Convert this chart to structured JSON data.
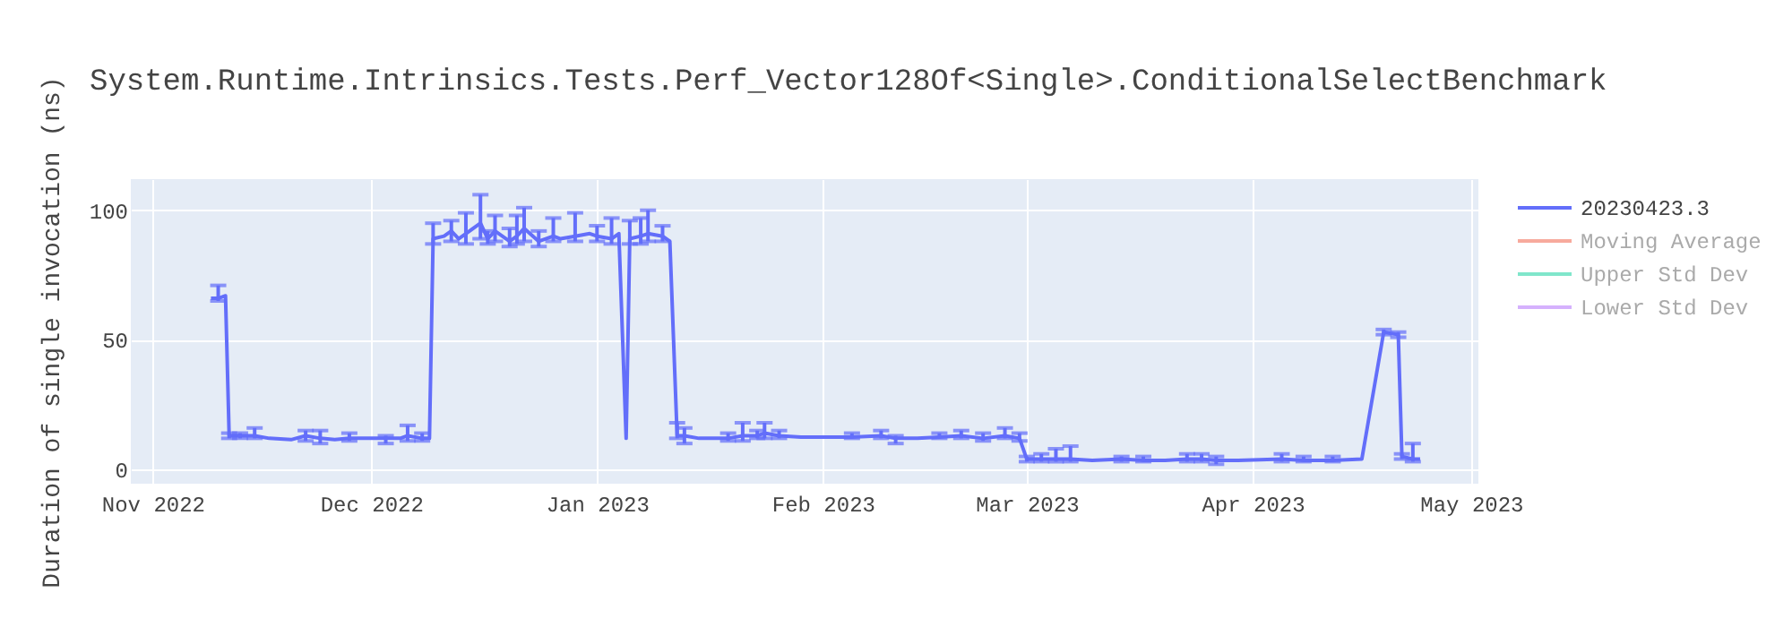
{
  "chart_data": {
    "type": "line",
    "title": "System.Runtime.Intrinsics.Tests.Perf_Vector128Of<Single>.ConditionalSelectBenchmark",
    "ylabel": "Duration of single invocation (ns)",
    "xlim": [
      "2022-10-29",
      "2023-05-02"
    ],
    "ylim": [
      -5.5,
      112
    ],
    "xticks": [
      {
        "value": "2022-11-01",
        "label": "Nov 2022"
      },
      {
        "value": "2022-12-01",
        "label": "Dec 2022"
      },
      {
        "value": "2023-01-01",
        "label": "Jan 2023"
      },
      {
        "value": "2023-02-01",
        "label": "Feb 2023"
      },
      {
        "value": "2023-03-01",
        "label": "Mar 2023"
      },
      {
        "value": "2023-04-01",
        "label": "Apr 2023"
      },
      {
        "value": "2023-05-01",
        "label": "May 2023"
      }
    ],
    "yticks": [
      0,
      50,
      100
    ],
    "grid": true,
    "legend": "top right",
    "line_style": "solid",
    "marker": "none",
    "x": [
      "2022-11-09",
      "2022-11-10",
      "2022-11-11",
      "2022-11-11T12:00",
      "2022-11-13",
      "2022-11-15",
      "2022-11-17",
      "2022-11-20",
      "2022-11-22",
      "2022-11-24",
      "2022-11-26",
      "2022-11-28",
      "2022-12-01",
      "2022-12-03",
      "2022-12-05",
      "2022-12-06",
      "2022-12-08",
      "2022-12-09",
      "2022-12-09T12:00",
      "2022-12-11",
      "2022-12-12",
      "2022-12-13",
      "2022-12-14",
      "2022-12-16",
      "2022-12-17",
      "2022-12-18",
      "2022-12-20",
      "2022-12-21",
      "2022-12-22",
      "2022-12-24",
      "2022-12-26",
      "2022-12-27",
      "2022-12-29",
      "2022-12-31",
      "2023-01-01",
      "2023-01-03",
      "2023-01-04",
      "2023-01-05",
      "2023-01-05T12:00",
      "2023-01-07",
      "2023-01-08",
      "2023-01-10",
      "2023-01-11",
      "2023-01-12",
      "2023-01-13",
      "2023-01-15",
      "2023-01-17",
      "2023-01-19",
      "2023-01-21",
      "2023-01-23",
      "2023-01-24",
      "2023-01-26",
      "2023-01-29",
      "2023-02-02",
      "2023-02-05",
      "2023-02-09",
      "2023-02-11",
      "2023-02-14",
      "2023-02-17",
      "2023-02-20",
      "2023-02-23",
      "2023-02-26",
      "2023-02-28",
      "2023-03-01",
      "2023-03-03",
      "2023-03-05",
      "2023-03-07",
      "2023-03-10",
      "2023-03-14",
      "2023-03-17",
      "2023-03-20",
      "2023-03-23",
      "2023-03-25",
      "2023-03-27",
      "2023-03-30",
      "2023-04-05",
      "2023-04-08",
      "2023-04-12",
      "2023-04-16",
      "2023-04-19",
      "2023-04-21",
      "2023-04-21T12:00",
      "2023-04-23",
      "2023-04-24"
    ],
    "series": [
      {
        "name": "20230423.3",
        "color": "#636efa",
        "values": [
          66,
          66,
          67,
          13,
          13,
          13,
          12,
          11.5,
          13,
          12,
          11.5,
          12,
          12,
          12,
          12,
          13,
          12,
          12,
          89,
          90,
          92,
          89,
          91,
          95,
          89,
          92,
          88,
          90,
          93,
          88,
          90,
          89,
          90,
          91,
          90,
          89,
          91,
          12,
          89,
          90,
          91,
          90,
          88,
          13,
          13,
          12,
          12,
          12,
          13,
          13,
          14,
          13,
          12.5,
          12.5,
          12.5,
          13,
          12,
          12,
          12.5,
          13,
          12,
          13,
          12,
          4,
          4,
          4,
          4,
          3.5,
          4,
          3.5,
          3.5,
          4,
          4,
          3.5,
          3.5,
          4,
          3.5,
          3.5,
          4,
          53,
          52,
          5,
          4,
          4
        ],
        "errors": [
          null,
          [
            65,
            71
          ],
          null,
          [
            12,
            14
          ],
          [
            12,
            14
          ],
          [
            12,
            16
          ],
          null,
          null,
          [
            11,
            15
          ],
          [
            10,
            15
          ],
          null,
          [
            11,
            14
          ],
          null,
          [
            10,
            13
          ],
          null,
          [
            11,
            17
          ],
          [
            11,
            14
          ],
          null,
          [
            87,
            95
          ],
          null,
          [
            88,
            96
          ],
          null,
          [
            87,
            99
          ],
          [
            89,
            106
          ],
          [
            87,
            92
          ],
          [
            88,
            98
          ],
          [
            86,
            93
          ],
          [
            87,
            98
          ],
          [
            88,
            101
          ],
          [
            86,
            92
          ],
          [
            88,
            97
          ],
          null,
          [
            88,
            99
          ],
          null,
          [
            88,
            94
          ],
          [
            87,
            97
          ],
          null,
          null,
          [
            87,
            96
          ],
          [
            87,
            97
          ],
          [
            88,
            100
          ],
          [
            88,
            94
          ],
          null,
          [
            12,
            18
          ],
          [
            10,
            16
          ],
          null,
          null,
          [
            11,
            14
          ],
          [
            11,
            18
          ],
          [
            12,
            15
          ],
          [
            12,
            18
          ],
          [
            12,
            15
          ],
          null,
          null,
          [
            12,
            14
          ],
          [
            12,
            15
          ],
          [
            10,
            13
          ],
          null,
          [
            12,
            14
          ],
          [
            12,
            15
          ],
          [
            11,
            14
          ],
          [
            12,
            16
          ],
          [
            11,
            14
          ],
          [
            3,
            5
          ],
          [
            3,
            6
          ],
          [
            3,
            8
          ],
          [
            3,
            9
          ],
          null,
          [
            3,
            5
          ],
          [
            3,
            5
          ],
          null,
          [
            3,
            6
          ],
          [
            3,
            6
          ],
          [
            2,
            5
          ],
          null,
          [
            3,
            6
          ],
          [
            3,
            5
          ],
          [
            3,
            5
          ],
          null,
          [
            52,
            54
          ],
          [
            51,
            53
          ],
          [
            4,
            6
          ],
          [
            3,
            10
          ],
          null
        ]
      },
      {
        "name": "Moving Average",
        "color": "#f7aa9d",
        "values": [
          null,
          null,
          null,
          null,
          null,
          null,
          null,
          null,
          null,
          null,
          null,
          null,
          null,
          null,
          null,
          null,
          null,
          null,
          null,
          null,
          null,
          null,
          null,
          null,
          null,
          null,
          null,
          null,
          null,
          null,
          null,
          null,
          null,
          null,
          null,
          null,
          null,
          null,
          null,
          null,
          null,
          null,
          null,
          null,
          null,
          null,
          null,
          null,
          null,
          null,
          null,
          null,
          null,
          null,
          null,
          null,
          null,
          null,
          null,
          null,
          null,
          null,
          null,
          null,
          null,
          null,
          null,
          null,
          null,
          null,
          null,
          null,
          null,
          null,
          null,
          null,
          null,
          null,
          null,
          null,
          null,
          null,
          null,
          null
        ]
      },
      {
        "name": "Upper Std Dev",
        "color": "#80e6cb",
        "values": [
          null,
          null,
          null,
          null,
          null,
          null,
          null,
          null,
          null,
          null,
          null,
          null,
          null,
          null,
          null,
          null,
          null,
          null,
          null,
          null,
          null,
          null,
          null,
          null,
          null,
          null,
          null,
          null,
          null,
          null,
          null,
          null,
          null,
          null,
          null,
          null,
          null,
          null,
          null,
          null,
          null,
          null,
          null,
          null,
          null,
          null,
          null,
          null,
          null,
          null,
          null,
          null,
          null,
          null,
          null,
          null,
          null,
          null,
          null,
          null,
          null,
          null,
          null,
          null,
          null,
          null,
          null,
          null,
          null,
          null,
          null,
          null,
          null,
          null,
          null,
          null,
          null,
          null,
          null,
          null,
          null,
          null,
          null,
          null
        ]
      },
      {
        "name": "Lower Std Dev",
        "color": "#d5b1fd",
        "values": [
          null,
          null,
          null,
          null,
          null,
          null,
          null,
          null,
          null,
          null,
          null,
          null,
          null,
          null,
          null,
          null,
          null,
          null,
          null,
          null,
          null,
          null,
          null,
          null,
          null,
          null,
          null,
          null,
          null,
          null,
          null,
          null,
          null,
          null,
          null,
          null,
          null,
          null,
          null,
          null,
          null,
          null,
          null,
          null,
          null,
          null,
          null,
          null,
          null,
          null,
          null,
          null,
          null,
          null,
          null,
          null,
          null,
          null,
          null,
          null,
          null,
          null,
          null,
          null,
          null,
          null,
          null,
          null,
          null,
          null,
          null,
          null,
          null,
          null,
          null,
          null,
          null,
          null,
          null,
          null,
          null,
          null,
          null,
          null
        ]
      }
    ]
  }
}
